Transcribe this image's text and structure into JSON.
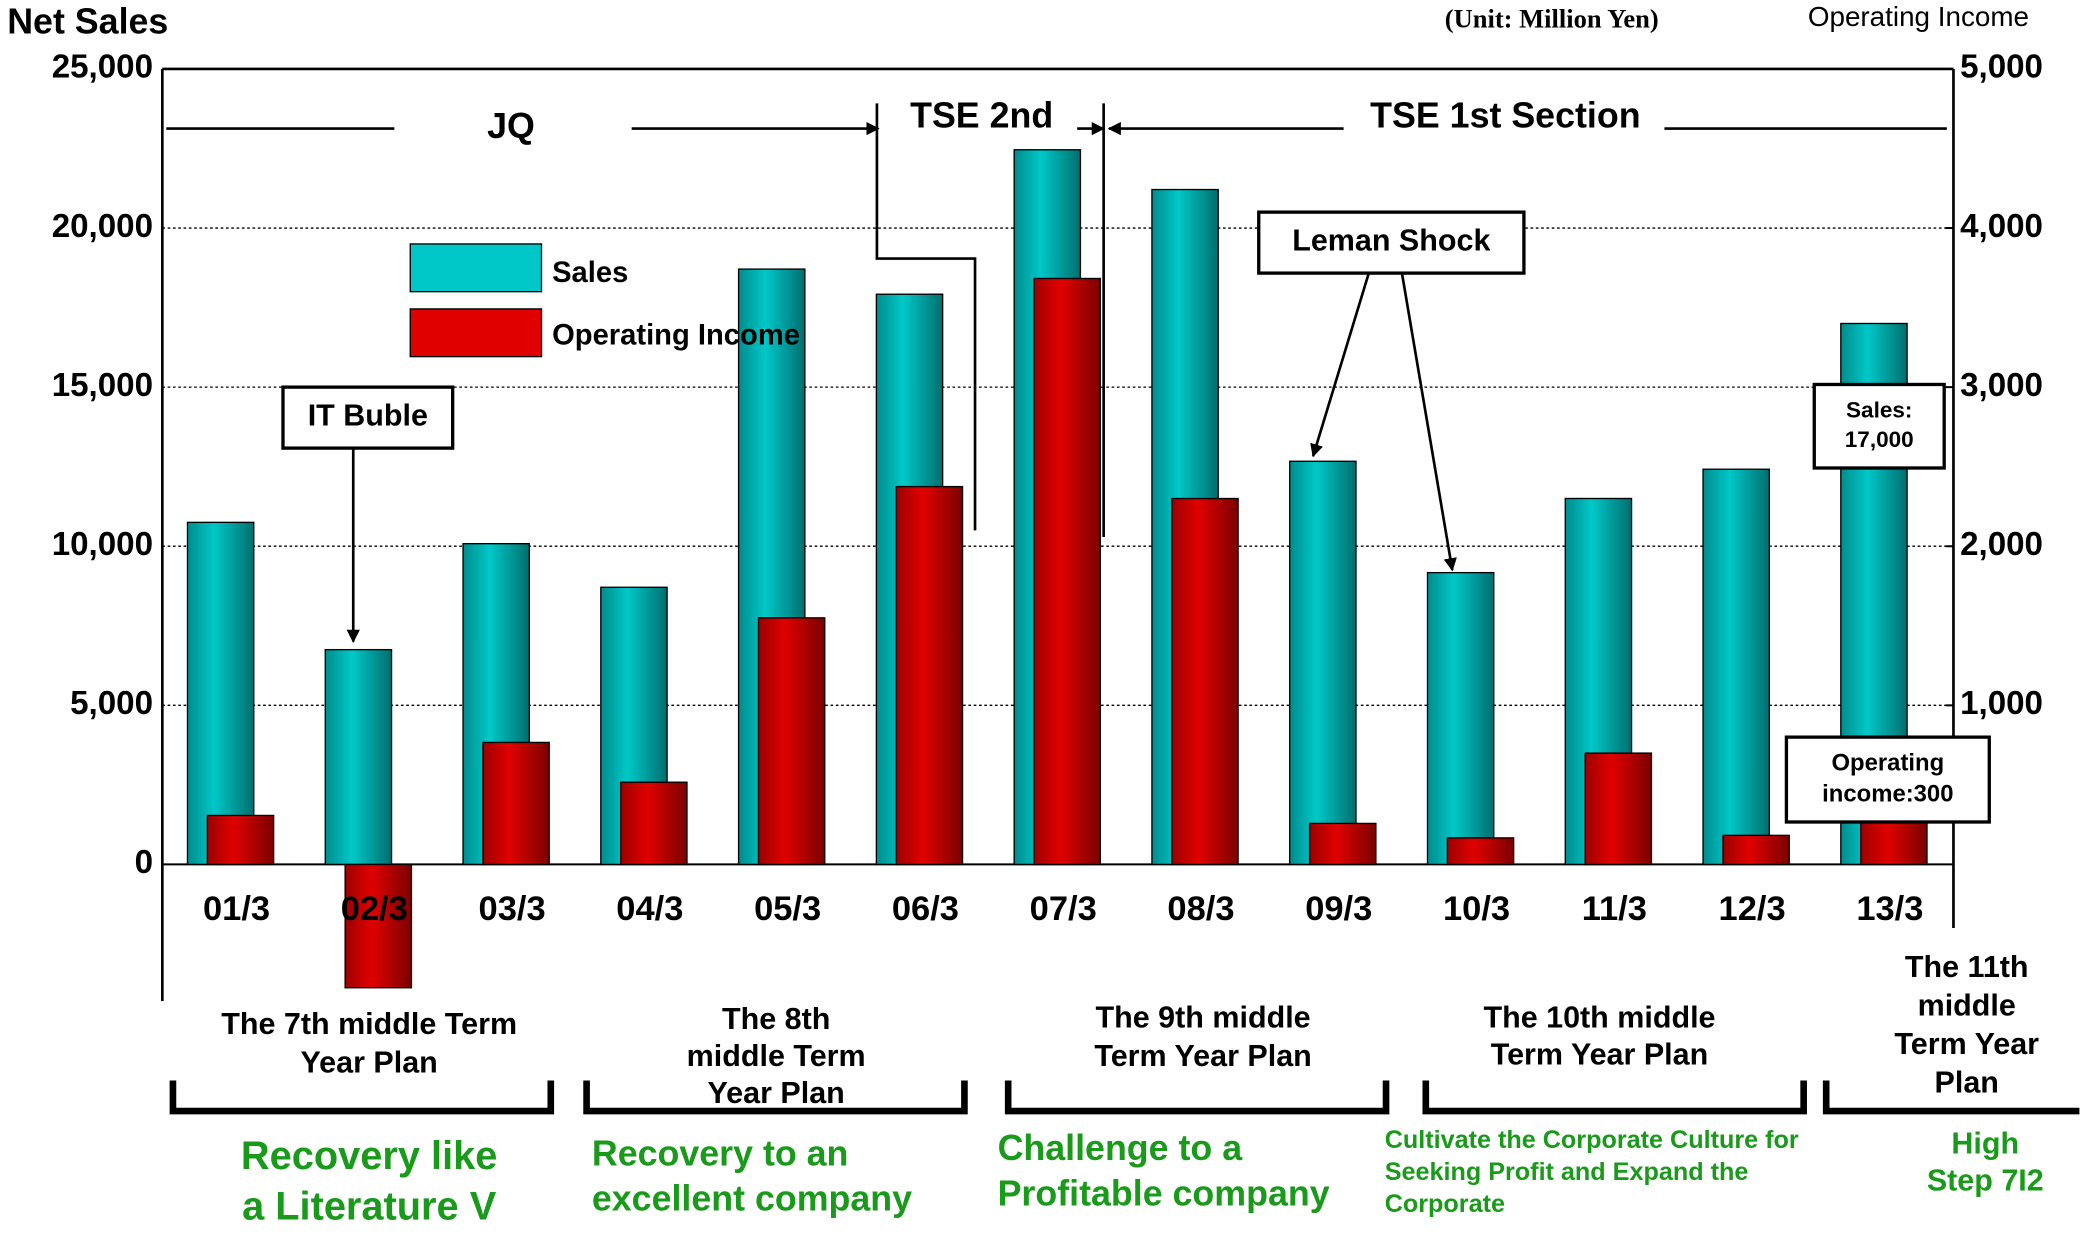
{
  "chart_data": {
    "type": "bar",
    "y_label": "Net Sales",
    "y2_label": "Operating Income",
    "unit": "(Unit: Million Yen)",
    "categories": [
      "01/3",
      "02/3",
      "03/3",
      "04/3",
      "05/3",
      "06/3",
      "07/3",
      "08/3",
      "09/3",
      "10/3",
      "11/3",
      "12/3",
      "13/3"
    ],
    "series": [
      {
        "name": "Sales",
        "color": "#00c8c8",
        "values": [
          10750,
          6750,
          10080,
          8710,
          18710,
          17920,
          22460,
          21210,
          12670,
          9170,
          11500,
          12420,
          17000
        ]
      },
      {
        "name": "Operating Income",
        "color": "#e00000",
        "axis": "y2",
        "values": [
          308,
          -775,
          767,
          517,
          1550,
          2375,
          3683,
          2300,
          258,
          167,
          700,
          183,
          300
        ]
      }
    ],
    "ylim": [
      -4292,
      25000
    ],
    "yticks": [
      0,
      {
        "value": 5000,
        "label": "5,000"
      },
      {
        "value": 10000,
        "label": "10,000"
      },
      {
        "value": 15000,
        "label": "15,000"
      },
      {
        "value": 20000,
        "label": "20,000"
      },
      {
        "value": 25000,
        "label": "25,000"
      }
    ],
    "y2lim": [
      -858,
      5000
    ],
    "y2ticks": [
      {
        "value": 1000,
        "label": "1,000"
      },
      {
        "value": 2000,
        "label": "2,000"
      },
      {
        "value": 3000,
        "label": "3,000"
      },
      {
        "value": 4000,
        "label": "4,000"
      },
      {
        "value": 5000,
        "label": "5,000"
      }
    ],
    "grid": true,
    "markets": [
      "JQ",
      "TSE 2nd",
      "TSE 1st Section"
    ],
    "callouts": [
      {
        "lines": [
          "IT Buble"
        ]
      },
      {
        "lines": [
          "Leman Shock"
        ]
      },
      {
        "lines": [
          "Sales:",
          "17,000"
        ]
      },
      {
        "lines": [
          "Operating",
          "income:300"
        ]
      }
    ],
    "plans": [
      {
        "lines": [
          "The 7th  middle Term",
          "Year Plan"
        ],
        "slogan": [
          "Recovery like",
          "a Literature V"
        ]
      },
      {
        "lines": [
          "The 8th",
          "middle Term",
          "Year Plan"
        ],
        "slogan": [
          "Recovery to an",
          "excellent company"
        ]
      },
      {
        "lines": [
          "The 9th  middle",
          "Term Year Plan"
        ],
        "slogan": [
          "Challenge to a",
          "Profitable company"
        ]
      },
      {
        "lines": [
          "The 10th  middle",
          "Term Year Plan"
        ],
        "slogan": [
          "Cultivate the Corporate Culture for",
          "Seeking Profit and Expand the",
          "Corporate"
        ]
      },
      {
        "lines": [
          "The 11th",
          "middle",
          "Term Year",
          "Plan"
        ],
        "slogan": [
          "High",
          "Step 7I2"
        ]
      }
    ]
  }
}
